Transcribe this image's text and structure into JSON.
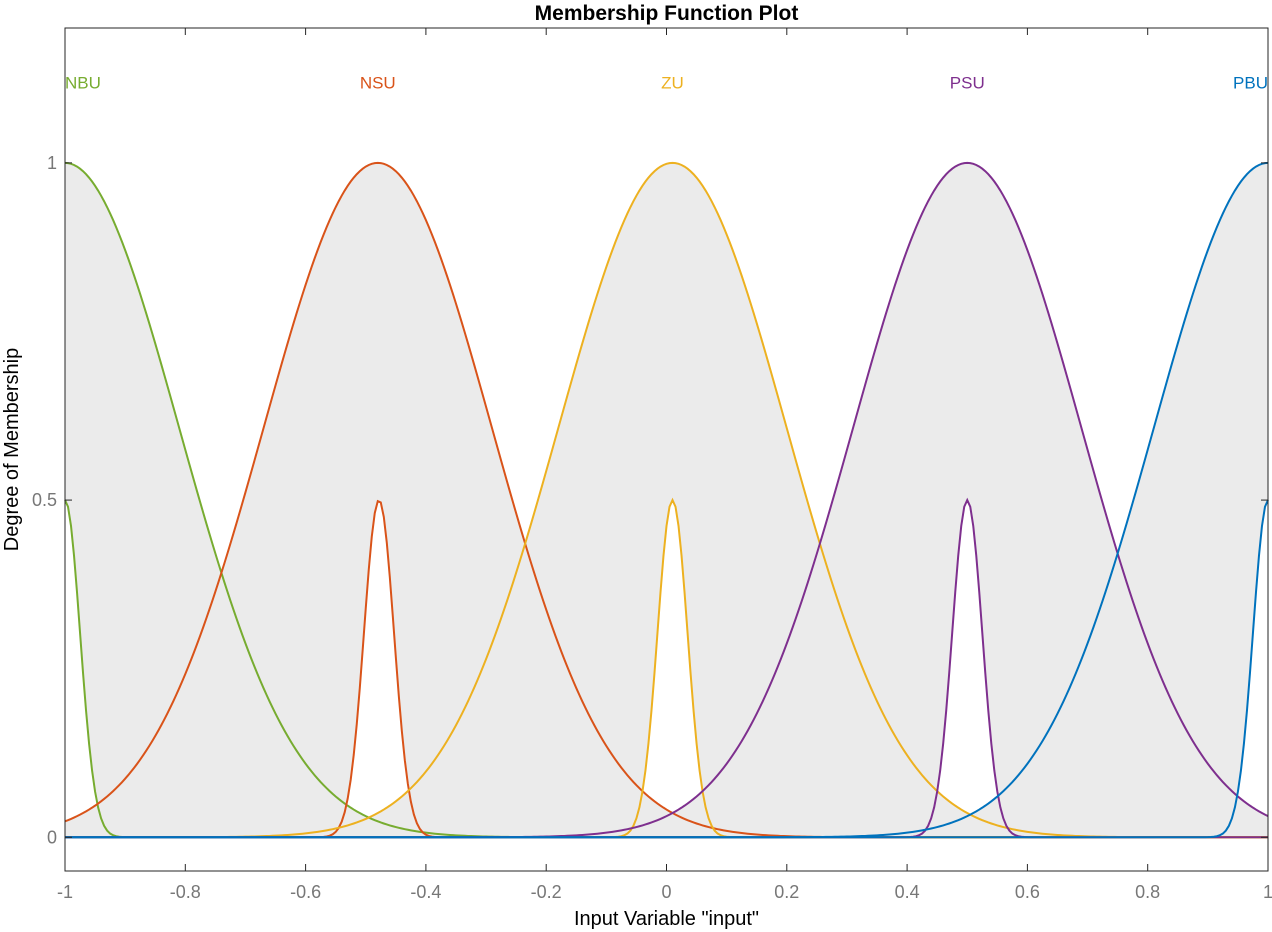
{
  "chart_data": {
    "type": "line",
    "title": "Membership Function Plot",
    "xlabel": "Input Variable \"input\"",
    "ylabel": "Degree of Membership",
    "xlim": [
      -1,
      1
    ],
    "ylim": [
      -0.05,
      1.2
    ],
    "xticks": [
      -1,
      -0.8,
      -0.6,
      -0.4,
      -0.2,
      0,
      0.2,
      0.4,
      0.6,
      0.8,
      1
    ],
    "xtick_labels": [
      "-1",
      "-0.8",
      "-0.6",
      "-0.4",
      "-0.2",
      "0",
      "0.2",
      "0.4",
      "0.6",
      "0.8",
      "1"
    ],
    "yticks": [
      0,
      0.5,
      1
    ],
    "ytick_labels": [
      "0",
      "0.5",
      "1"
    ],
    "grid": false,
    "series": [
      {
        "name": "NBU",
        "color": "#77AC30",
        "upper": {
          "center": -1.0,
          "sigma": 0.19,
          "height": 1.0
        },
        "lower": {
          "center": -1.0,
          "sigma": 0.025,
          "height": 0.5
        }
      },
      {
        "name": "NSU",
        "color": "#D95319",
        "upper": {
          "center": -0.48,
          "sigma": 0.19,
          "height": 1.0
        },
        "lower": {
          "center": -0.478,
          "sigma": 0.025,
          "height": 0.5
        }
      },
      {
        "name": "ZU",
        "color": "#EDB120",
        "upper": {
          "center": 0.01,
          "sigma": 0.19,
          "height": 1.0
        },
        "lower": {
          "center": 0.01,
          "sigma": 0.025,
          "height": 0.5
        }
      },
      {
        "name": "PSU",
        "color": "#7E2F8E",
        "upper": {
          "center": 0.5,
          "sigma": 0.19,
          "height": 1.0
        },
        "lower": {
          "center": 0.5,
          "sigma": 0.025,
          "height": 0.5
        }
      },
      {
        "name": "PBU",
        "color": "#0072BD",
        "upper": {
          "center": 1.0,
          "sigma": 0.19,
          "height": 1.0
        },
        "lower": {
          "center": 1.0,
          "sigma": 0.025,
          "height": 0.5
        }
      }
    ],
    "label_y": 1.11,
    "footprint_fill": "#EBEBEB"
  }
}
